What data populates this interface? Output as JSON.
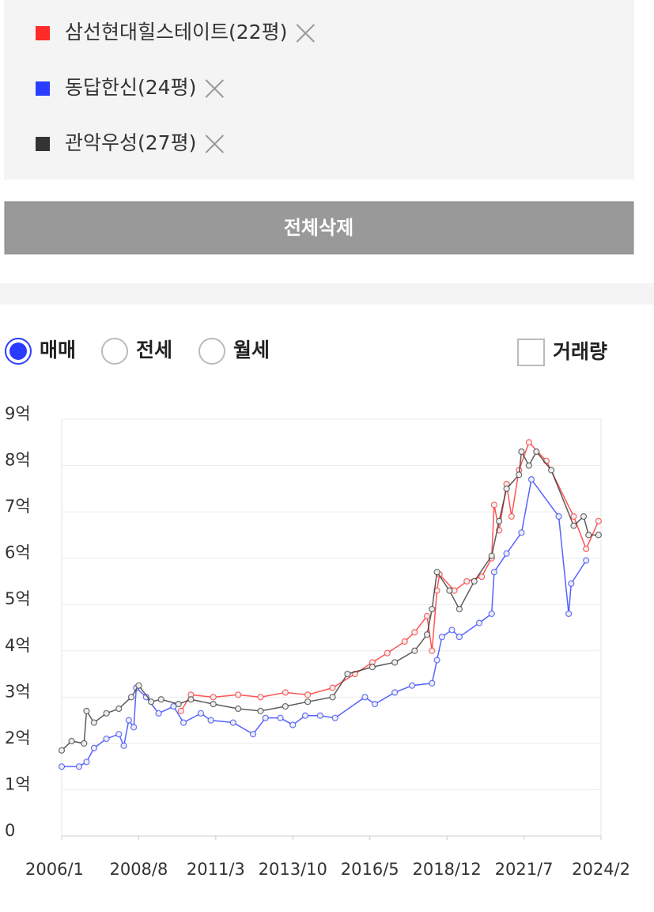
{
  "chart_data": {
    "type": "line",
    "series": [
      {
        "name": "삼선현대힐스테이트(22평)",
        "color": "#ff2a2a",
        "x": [
          "2010/1",
          "2010/5",
          "2011/2",
          "2011/12",
          "2012/9",
          "2013/7",
          "2014/4",
          "2015/2",
          "2015/11",
          "2016/6",
          "2016/12",
          "2017/7",
          "2017/11",
          "2018/4",
          "2018/6",
          "2018/8",
          "2018/9",
          "2019/3",
          "2019/8",
          "2020/2",
          "2020/6",
          "2020/7",
          "2020/9",
          "2020/12",
          "2021/2",
          "2021/5",
          "2021/9",
          "2022/4",
          "2023/3",
          "2023/8",
          "2024/1"
        ],
        "values": [
          2.7,
          3.05,
          3.0,
          3.05,
          3.0,
          3.1,
          3.05,
          3.2,
          3.5,
          3.75,
          3.95,
          4.2,
          4.4,
          4.75,
          4.0,
          5.3,
          5.65,
          5.3,
          5.5,
          5.6,
          6.0,
          7.15,
          6.6,
          7.6,
          6.9,
          7.9,
          8.5,
          8.1,
          6.9,
          6.2,
          6.8
        ]
      },
      {
        "name": "동답한신(24평)",
        "color": "#2a3cff",
        "x": [
          "2006/1",
          "2006/8",
          "2006/11",
          "2007/2",
          "2007/7",
          "2007/12",
          "2008/2",
          "2008/4",
          "2008/6",
          "2008/7",
          "2008/11",
          "2009/4",
          "2009/10",
          "2010/2",
          "2010/9",
          "2011/1",
          "2011/10",
          "2012/6",
          "2012/11",
          "2013/5",
          "2013/10",
          "2014/3",
          "2014/9",
          "2015/3",
          "2016/3",
          "2016/7",
          "2017/3",
          "2017/10",
          "2018/6",
          "2018/8",
          "2018/10",
          "2019/2",
          "2019/5",
          "2020/1",
          "2020/6",
          "2020/7",
          "2020/12",
          "2021/6",
          "2021/10",
          "2022/9",
          "2023/1",
          "2023/2",
          "2023/8"
        ],
        "values": [
          1.5,
          1.5,
          1.6,
          1.9,
          2.1,
          2.2,
          1.95,
          2.5,
          2.35,
          3.2,
          3.0,
          2.65,
          2.8,
          2.45,
          2.65,
          2.5,
          2.45,
          2.2,
          2.55,
          2.55,
          2.4,
          2.6,
          2.6,
          2.55,
          3.0,
          2.85,
          3.1,
          3.25,
          3.3,
          3.8,
          4.3,
          4.45,
          4.3,
          4.6,
          4.8,
          5.7,
          6.1,
          6.55,
          7.7,
          6.9,
          4.8,
          5.45,
          5.95
        ]
      },
      {
        "name": "관악우성(27평)",
        "color": "#333333",
        "x": [
          "2006/1",
          "2006/5",
          "2006/10",
          "2006/11",
          "2007/2",
          "2007/7",
          "2007/12",
          "2008/5",
          "2008/8",
          "2009/1",
          "2009/5",
          "2009/12",
          "2010/5",
          "2011/2",
          "2011/12",
          "2012/9",
          "2013/7",
          "2014/4",
          "2015/2",
          "2015/8",
          "2016/6",
          "2017/3",
          "2017/11",
          "2018/4",
          "2018/6",
          "2018/8",
          "2019/1",
          "2019/5",
          "2019/11",
          "2020/6",
          "2020/9",
          "2020/12",
          "2021/5",
          "2021/6",
          "2021/9",
          "2021/12",
          "2022/6",
          "2023/3",
          "2023/7",
          "2023/9",
          "2024/1"
        ],
        "values": [
          1.85,
          2.05,
          2.0,
          2.7,
          2.45,
          2.65,
          2.75,
          3.0,
          3.25,
          2.9,
          2.95,
          2.85,
          2.95,
          2.85,
          2.75,
          2.7,
          2.8,
          2.9,
          3.0,
          3.5,
          3.65,
          3.75,
          4.0,
          4.35,
          4.9,
          5.7,
          5.3,
          4.9,
          5.5,
          6.05,
          6.8,
          7.5,
          7.8,
          8.3,
          8.0,
          8.3,
          7.9,
          6.7,
          6.9,
          6.5,
          6.5
        ]
      }
    ],
    "xlim": [
      "2006/1",
      "2024/2"
    ],
    "xticks": [
      "2006/1",
      "2008/8",
      "2011/3",
      "2013/10",
      "2016/5",
      "2018/12",
      "2021/7",
      "2024/2"
    ],
    "ylim": [
      0,
      9
    ],
    "yticks": [
      0,
      {
        "value": 1,
        "label": "1억"
      },
      {
        "value": 2,
        "label": "2억"
      },
      {
        "value": 3,
        "label": "3억"
      },
      {
        "value": 4,
        "label": "4억"
      },
      {
        "value": 5,
        "label": "5억"
      },
      {
        "value": 6,
        "label": "6억"
      },
      {
        "value": 7,
        "label": "7억"
      },
      {
        "value": 8,
        "label": "8억"
      },
      {
        "value": 9,
        "label": "9억"
      }
    ],
    "grid": true
  },
  "controls": {
    "delete_all": "전체삭제",
    "trade_types": [
      "매매",
      "전세",
      "월세"
    ],
    "volume_checkbox": "거래량"
  }
}
